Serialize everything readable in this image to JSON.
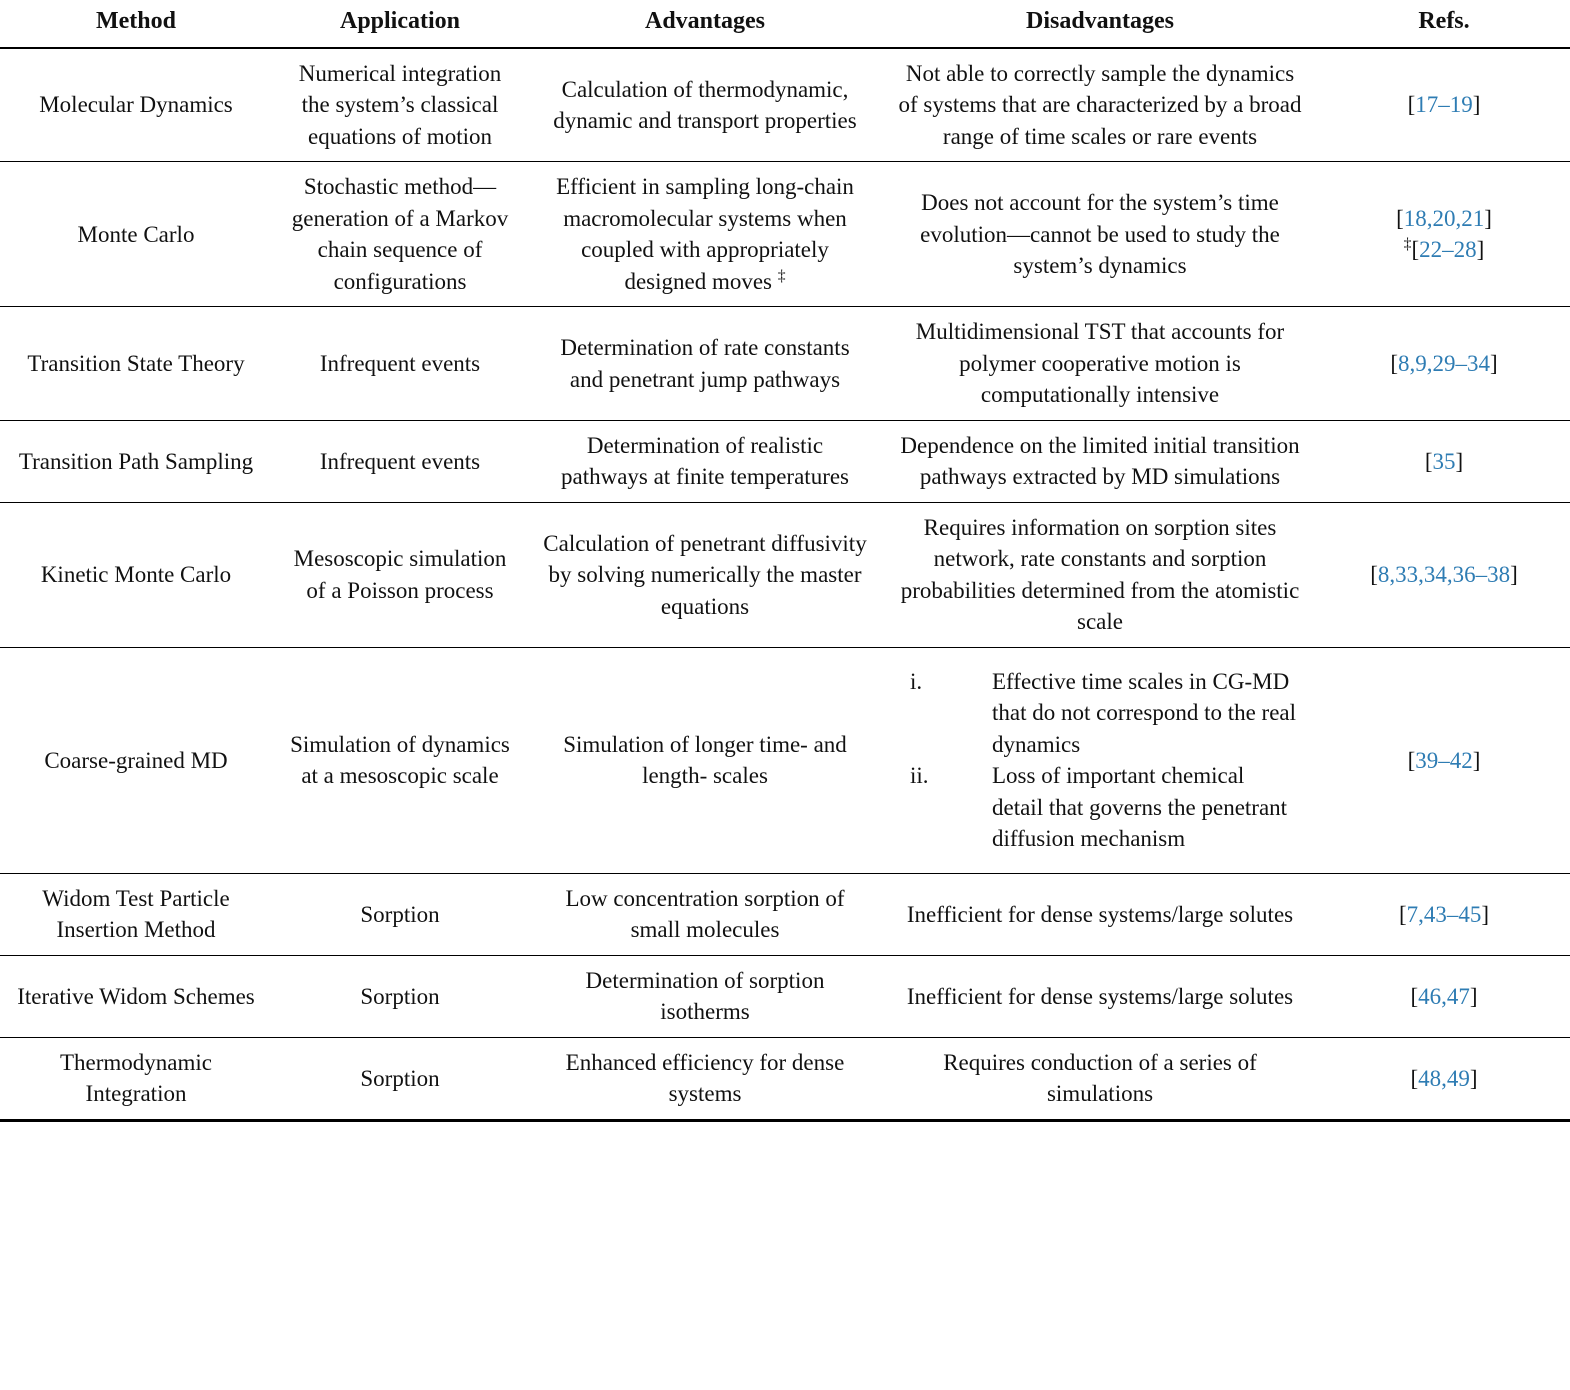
{
  "table": {
    "link_color": "#2e7cb3",
    "columns": [
      "Method",
      "Application",
      "Advantages",
      "Disadvantages",
      "Refs."
    ],
    "rows": [
      {
        "method": "Molecular Dynamics",
        "application": "Numerical integration the system’s classical equations of motion",
        "advantages": "Calculation of thermodynamic, dynamic and transport properties",
        "disadvantages": "Not able to correctly sample the dynamics of systems that are characterized by a broad range of time scales or rare events",
        "refs": [
          {
            "marker": "",
            "content": "17–19"
          }
        ]
      },
      {
        "method": "Monte Carlo",
        "application": "Stochastic method—generation of a Markov chain sequence of configurations",
        "advantages": "Efficient in sampling long-chain macromolecular systems when coupled with appropriately designed moves",
        "advantages_sup": "‡",
        "disadvantages": "Does not account for the system’s time evolution—cannot be used to study the system’s dynamics",
        "refs": [
          {
            "marker": "",
            "content": "18,20,21"
          },
          {
            "marker": "‡",
            "content": "22–28"
          }
        ]
      },
      {
        "method": "Transition State Theory",
        "application": "Infrequent events",
        "advantages": "Determination of rate constants and penetrant jump pathways",
        "disadvantages": "Multidimensional TST that accounts for polymer cooperative motion is computationally intensive",
        "refs": [
          {
            "marker": "",
            "content": "8,9,29–34"
          }
        ]
      },
      {
        "method": "Transition Path Sampling",
        "application": "Infrequent events",
        "advantages": "Determination of realistic pathways at finite temperatures",
        "disadvantages": "Dependence on the limited initial transition pathways extracted by MD simulations",
        "refs": [
          {
            "marker": "",
            "content": "35"
          }
        ]
      },
      {
        "method": "Kinetic Monte Carlo",
        "application": "Mesoscopic simulation of a Poisson process",
        "advantages": "Calculation of penetrant diffusivity by solving numerically the master equations",
        "disadvantages": "Requires information on sorption sites network, rate constants and sorption probabilities determined from the atomistic scale",
        "refs": [
          {
            "marker": "",
            "content": "8,33,34,36–38"
          }
        ]
      },
      {
        "method": "Coarse-grained MD",
        "application": "Simulation of dynamics at a mesoscopic scale",
        "advantages": "Simulation of longer time- and length- scales",
        "disadvantages": {
          "list": [
            {
              "num": "i.",
              "text": "Effective time scales in CG-MD that do not correspond to the real dynamics"
            },
            {
              "num": "ii.",
              "text": "Loss of important chemical detail that governs the penetrant diffusion mechanism"
            }
          ]
        },
        "refs": [
          {
            "marker": "",
            "content": "39–42"
          }
        ]
      },
      {
        "method": "Widom Test Particle Insertion Method",
        "application": "Sorption",
        "advantages": "Low concentration sorption of small molecules",
        "disadvantages": "Inefficient for dense systems/large solutes",
        "refs": [
          {
            "marker": "",
            "content": "7,43–45"
          }
        ]
      },
      {
        "method": "Iterative Widom Schemes",
        "application": "Sorption",
        "advantages": "Determination of sorption isotherms",
        "disadvantages": "Inefficient for dense systems/large solutes",
        "refs": [
          {
            "marker": "",
            "content": "46,47"
          }
        ]
      },
      {
        "method": "Thermodynamic Integration",
        "application": "Sorption",
        "advantages": "Enhanced efficiency for dense systems",
        "disadvantages": "Requires conduction of a series of simulations",
        "refs": [
          {
            "marker": "",
            "content": "48,49"
          }
        ]
      }
    ]
  }
}
